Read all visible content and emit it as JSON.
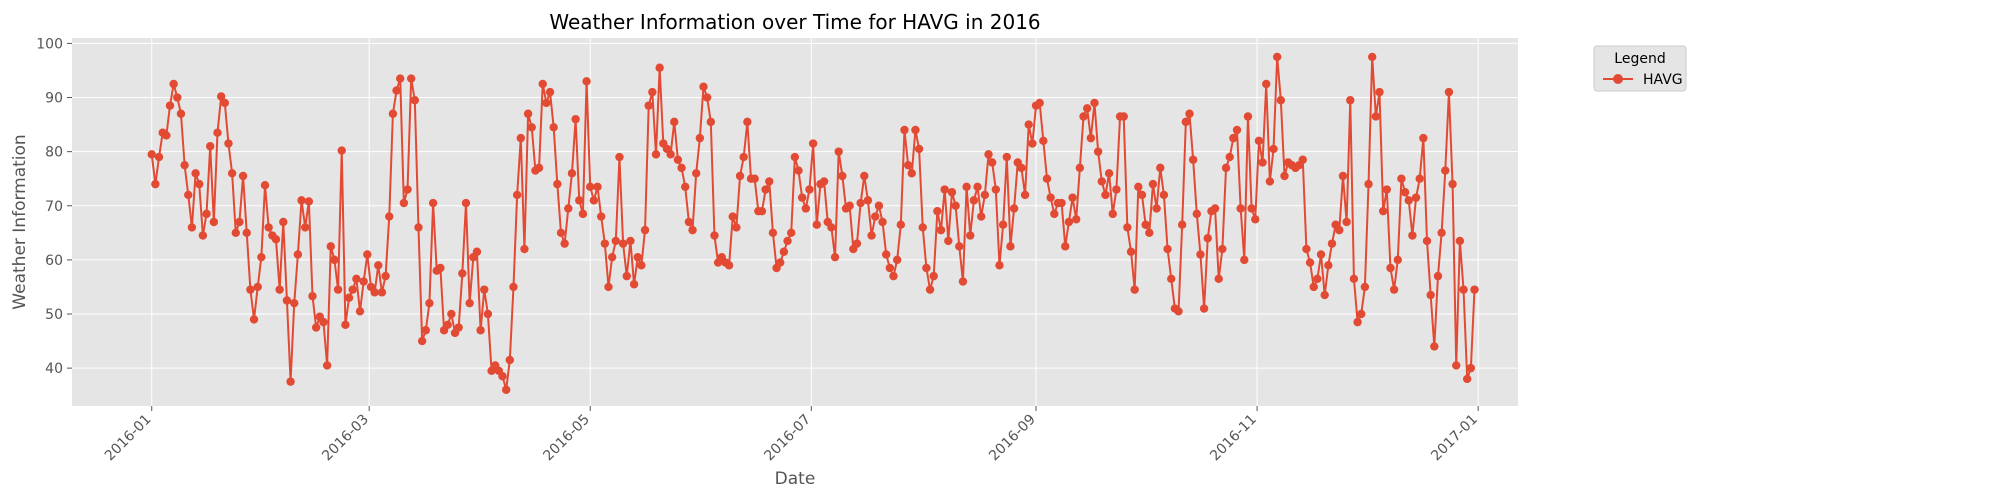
{
  "chart_data": {
    "type": "line",
    "title": "Weather Information over Time for HAVG in 2016",
    "xlabel": "Date",
    "ylabel": "Weather Information",
    "xlim": [
      "2015-12-10",
      "2017-01-12"
    ],
    "ylim": [
      33,
      101
    ],
    "x_ticks": [
      "2016-01",
      "2016-03",
      "2016-05",
      "2016-07",
      "2016-09",
      "2016-11",
      "2017-01"
    ],
    "y_ticks": [
      40,
      50,
      60,
      70,
      80,
      90,
      100
    ],
    "grid": true,
    "legend": {
      "title": "Legend",
      "placement": "outside-top-right"
    },
    "x_start": "2016-01-01",
    "x_end": "2016-12-31",
    "series": [
      {
        "name": "HAVG",
        "color": "#e24a33",
        "values": [
          79.5,
          74,
          79,
          83.5,
          83,
          88.5,
          92.5,
          90,
          87,
          77.5,
          72,
          66,
          76,
          74,
          64.5,
          68.5,
          81,
          67,
          83.5,
          90.2,
          89,
          81.5,
          76,
          65,
          67,
          75.5,
          65,
          54.5,
          49,
          55,
          60.5,
          73.8,
          66,
          64.5,
          63.8,
          54.5,
          67,
          52.5,
          37.5,
          52,
          61,
          71,
          66,
          70.8,
          53.3,
          47.5,
          49.5,
          48.5,
          40.5,
          62.5,
          60,
          54.5,
          80.2,
          48,
          53,
          54.5,
          56.5,
          50.5,
          56,
          61,
          55,
          54,
          59,
          54,
          57,
          68,
          87,
          91.3,
          93.5,
          70.5,
          73,
          93.5,
          89.5,
          66,
          45,
          47,
          52,
          70.5,
          58,
          58.5,
          47,
          48,
          50,
          46.5,
          47.5,
          57.5,
          70.5,
          52,
          60.5,
          61.5,
          47,
          54.5,
          50,
          39.5,
          40.5,
          39.5,
          38.5,
          36,
          41.5,
          55,
          72,
          82.5,
          62,
          87,
          84.5,
          76.5,
          77,
          92.5,
          89,
          91,
          84.5,
          74,
          65,
          63,
          69.5,
          76,
          86,
          71,
          68.5,
          93,
          73.5,
          71,
          73.5,
          68,
          63,
          55,
          60.5,
          63.5,
          79,
          63,
          57,
          63.5,
          55.5,
          60.5,
          59,
          65.5,
          88.5,
          91,
          79.5,
          95.5,
          81.5,
          80.5,
          79.5,
          85.5,
          78.5,
          77,
          73.5,
          67,
          65.5,
          76,
          82.5,
          92,
          90,
          85.5,
          64.5,
          59.5,
          60.5,
          59.5,
          59,
          68,
          66,
          75.5,
          79,
          85.5,
          75,
          75,
          69,
          69,
          73,
          74.5,
          65,
          58.5,
          59.5,
          61.5,
          63.5,
          65,
          79,
          76.5,
          71.5,
          69.5,
          73,
          81.5,
          66.5,
          74,
          74.5,
          67,
          66,
          60.5,
          80,
          75.5,
          69.5,
          70,
          62,
          63,
          70.5,
          75.5,
          71,
          64.5,
          68,
          70,
          67,
          61,
          58.5,
          57,
          60,
          66.5,
          84,
          77.5,
          76,
          84,
          80.5,
          66,
          58.5,
          54.5,
          57,
          69,
          65.5,
          73,
          63.5,
          72.5,
          70,
          62.5,
          56,
          73.5,
          64.5,
          71,
          73.5,
          68,
          72,
          79.5,
          78,
          73,
          59,
          66.5,
          79,
          62.5,
          69.5,
          78,
          77,
          72,
          85,
          81.5,
          88.5,
          89,
          82,
          75,
          71.5,
          68.5,
          70.5,
          70.5,
          62.5,
          67,
          71.5,
          67.5,
          77,
          86.5,
          88,
          82.5,
          89,
          80,
          74.5,
          72,
          76,
          68.5,
          73,
          86.5,
          86.5,
          66,
          61.5,
          54.5,
          73.5,
          72,
          66.5,
          65,
          74,
          69.5,
          77,
          72,
          62,
          56.5,
          51,
          50.5,
          66.5,
          85.5,
          87,
          78.5,
          68.5,
          61,
          51,
          64,
          69,
          69.5,
          56.5,
          62,
          77,
          79,
          82.5,
          84,
          69.5,
          60,
          86.5,
          69.5,
          67.5,
          82,
          78,
          92.5,
          74.5,
          80.5,
          97.5,
          89.5,
          75.5,
          78,
          77.5,
          77,
          77.5,
          78.5,
          62,
          59.5,
          55,
          56.5,
          61,
          53.5,
          59,
          63,
          66.5,
          65.5,
          75.5,
          67,
          89.5,
          56.5,
          48.5,
          50,
          55,
          74,
          97.5,
          86.5,
          91,
          69,
          73,
          58.5,
          54.5,
          60,
          75,
          72.5,
          71,
          64.5,
          71.5,
          75,
          82.5,
          63.5,
          53.5,
          44,
          57,
          65,
          76.5,
          91,
          74,
          40.5,
          63.5,
          54.5,
          38,
          40,
          54.5
        ]
      }
    ]
  }
}
